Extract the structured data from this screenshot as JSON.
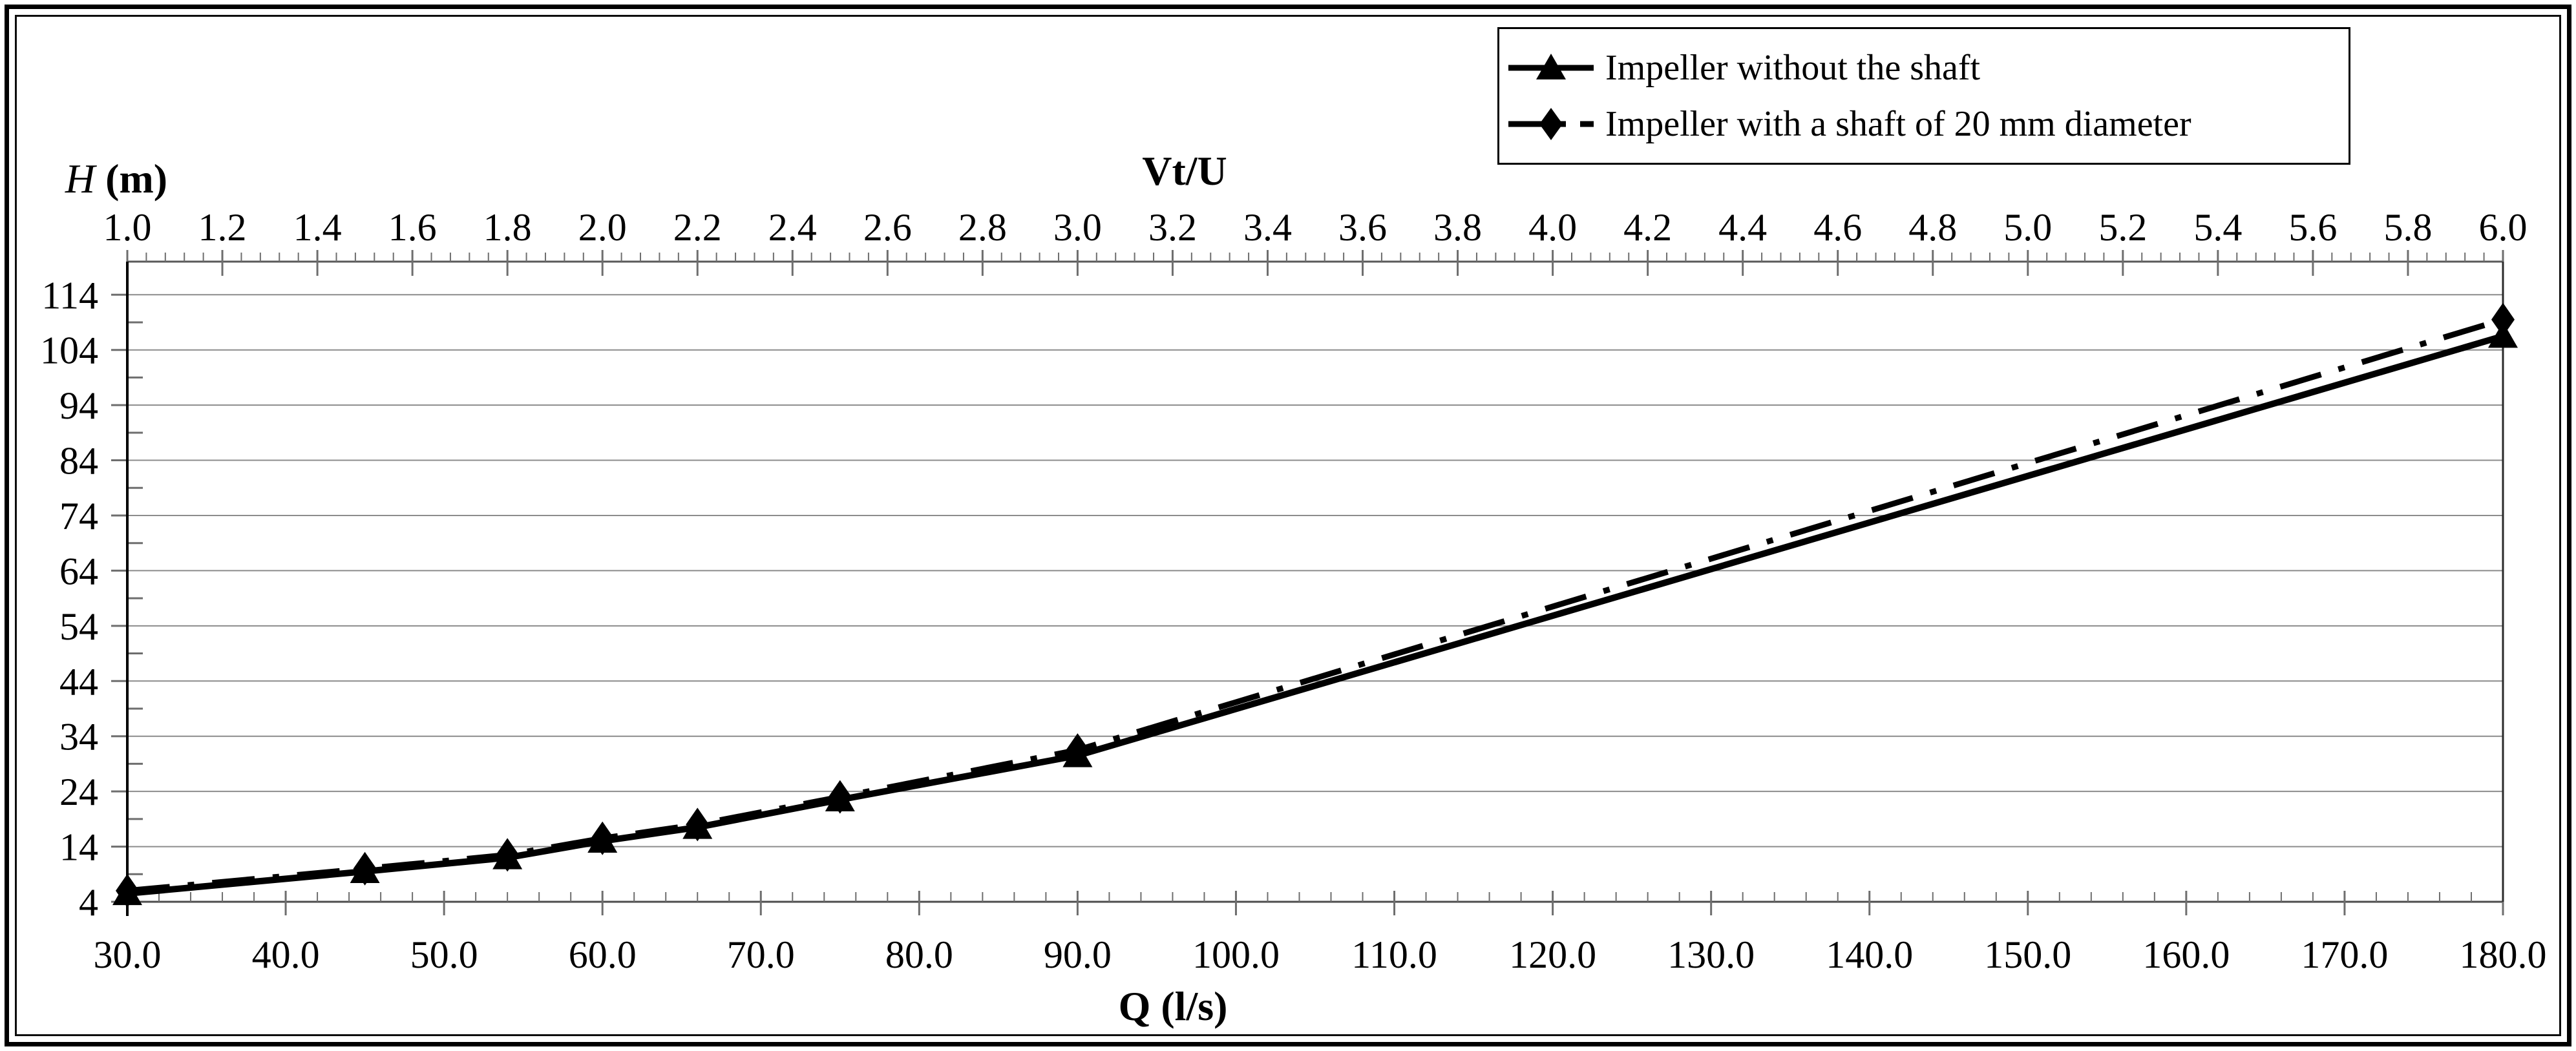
{
  "figure": {
    "background": "#ffffff",
    "frame_color": "#000000",
    "gridline_color": "#8c8c8c",
    "axis_line_color": "#595959",
    "tick_color": "#6e6e6e",
    "series_color": "#000000"
  },
  "axes": {
    "y": {
      "title_var": "H",
      "title_unit": "(m)",
      "min": 4,
      "max": 120,
      "major_step": 10,
      "minor_step": 5,
      "tick_labels": [
        "4",
        "14",
        "24",
        "34",
        "44",
        "54",
        "64",
        "74",
        "84",
        "94",
        "104",
        "114"
      ]
    },
    "x_top": {
      "title": "Vt/U",
      "min": 1.0,
      "max": 6.0,
      "major_step": 0.2,
      "minor_step": 0.04,
      "tick_labels": [
        "1.0",
        "1.2",
        "1.4",
        "1.6",
        "1.8",
        "2.0",
        "2.2",
        "2.4",
        "2.6",
        "2.8",
        "3.0",
        "3.2",
        "3.4",
        "3.6",
        "3.8",
        "4.0",
        "4.2",
        "4.4",
        "4.6",
        "4.8",
        "5.0",
        "5.2",
        "5.4",
        "5.6",
        "5.8",
        "6.0"
      ]
    },
    "x_bottom": {
      "title": "Q (l/s)",
      "min": 30,
      "max": 180,
      "major_step": 10,
      "minor_step": 2,
      "tick_labels": [
        "30.0",
        "40.0",
        "50.0",
        "60.0",
        "70.0",
        "80.0",
        "90.0",
        "100.0",
        "110.0",
        "120.0",
        "130.0",
        "140.0",
        "150.0",
        "160.0",
        "170.0",
        "180.0"
      ]
    }
  },
  "legend": {
    "items": [
      {
        "label": "Impeller without the shaft",
        "marker": "triangle",
        "line": "solid"
      },
      {
        "label": "Impeller with a shaft of 20 mm diameter",
        "marker": "diamond",
        "line": "dash-dot"
      }
    ]
  },
  "chart_data": {
    "type": "line",
    "title": "",
    "xlabel_bottom": "Q (l/s)",
    "xlabel_top": "Vt/U",
    "ylabel": "H (m)",
    "x_bottom_range": [
      30,
      180
    ],
    "x_top_range": [
      1.0,
      6.0
    ],
    "ylim": [
      4,
      120
    ],
    "grid": "horizontal",
    "legend_position": "top-right",
    "series": [
      {
        "name": "Impeller without the shaft",
        "marker": "triangle",
        "line_style": "solid",
        "Q": [
          30,
          45,
          54,
          60,
          66,
          75,
          90,
          180
        ],
        "VtU": [
          1.0,
          1.5,
          1.8,
          2.0,
          2.2,
          2.5,
          3.0,
          6.0
        ],
        "H": [
          5.5,
          9.5,
          12.0,
          15.0,
          17.5,
          22.5,
          30.5,
          106.5
        ]
      },
      {
        "name": "Impeller with a shaft of 20 mm diameter",
        "marker": "diamond",
        "line_style": "dash-dot",
        "Q": [
          30,
          45,
          54,
          60,
          66,
          75,
          90,
          180
        ],
        "VtU": [
          1.0,
          1.5,
          1.8,
          2.0,
          2.2,
          2.5,
          3.0,
          6.0
        ],
        "H": [
          6.0,
          10.0,
          12.5,
          15.5,
          18.0,
          23.0,
          31.5,
          109.5
        ]
      }
    ]
  }
}
